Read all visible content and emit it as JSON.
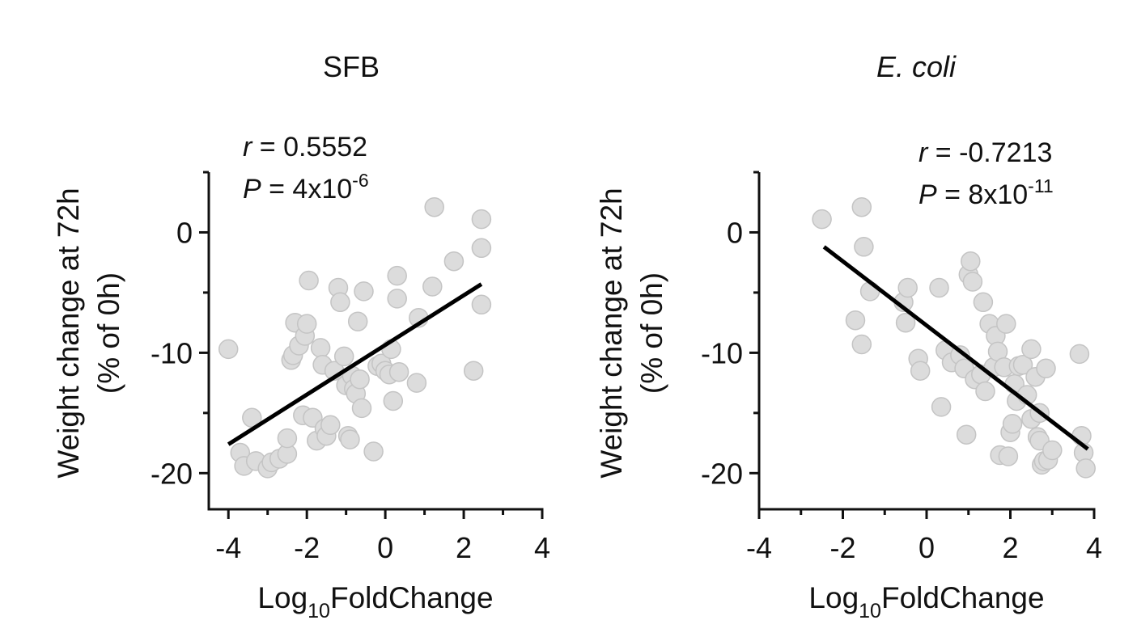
{
  "chart_data": [
    {
      "type": "scatter",
      "title": "SFB",
      "ylabel_line1": "Weight change at 72h",
      "ylabel_line2": "(% of 0h)",
      "xlabel_base": "Log",
      "xlabel_sub": "10",
      "xlabel_rest": "FoldChange",
      "xlim": [
        -4.5,
        4
      ],
      "ylim": [
        -23,
        5
      ],
      "xticks": [
        -4,
        -2,
        0,
        2,
        4
      ],
      "yticks": [
        0,
        -10,
        -20
      ],
      "stats": {
        "r_label": "r",
        "r_value": " = 0.5552",
        "p_label": "P",
        "p_value": " = 4x10",
        "p_exp": "-6"
      },
      "fit": {
        "x": [
          -4.0,
          2.45
        ],
        "y": [
          -17.6,
          -4.3
        ]
      },
      "points": [
        [
          -4.0,
          -9.7
        ],
        [
          -3.7,
          -18.3
        ],
        [
          -3.6,
          -19.4
        ],
        [
          -3.4,
          -15.4
        ],
        [
          -3.3,
          -19.0
        ],
        [
          -3.0,
          -19.6
        ],
        [
          -2.9,
          -19.1
        ],
        [
          -2.7,
          -18.8
        ],
        [
          -2.5,
          -18.4
        ],
        [
          -2.5,
          -17.1
        ],
        [
          -2.4,
          -10.6
        ],
        [
          -2.35,
          -10.2
        ],
        [
          -2.3,
          -7.5
        ],
        [
          -2.2,
          -9.4
        ],
        [
          -2.1,
          -15.2
        ],
        [
          -2.05,
          -8.6
        ],
        [
          -2.0,
          -7.6
        ],
        [
          -1.95,
          -4.0
        ],
        [
          -1.85,
          -15.4
        ],
        [
          -1.75,
          -17.3
        ],
        [
          -1.65,
          -9.6
        ],
        [
          -1.6,
          -11.0
        ],
        [
          -1.55,
          -16.3
        ],
        [
          -1.5,
          -16.9
        ],
        [
          -1.4,
          -16.0
        ],
        [
          -1.3,
          -11.5
        ],
        [
          -1.2,
          -4.6
        ],
        [
          -1.15,
          -5.8
        ],
        [
          -1.05,
          -10.3
        ],
        [
          -1.0,
          -12.7
        ],
        [
          -0.95,
          -16.9
        ],
        [
          -0.9,
          -17.2
        ],
        [
          -0.85,
          -11.9
        ],
        [
          -0.8,
          -13.0
        ],
        [
          -0.75,
          -13.4
        ],
        [
          -0.7,
          -7.4
        ],
        [
          -0.65,
          -12.2
        ],
        [
          -0.6,
          -14.6
        ],
        [
          -0.55,
          -4.9
        ],
        [
          -0.3,
          -18.2
        ],
        [
          -0.2,
          -11.1
        ],
        [
          -0.1,
          -10.9
        ],
        [
          0.0,
          -11.5
        ],
        [
          0.1,
          -11.8
        ],
        [
          0.15,
          -9.7
        ],
        [
          0.2,
          -14.0
        ],
        [
          0.3,
          -3.6
        ],
        [
          0.3,
          -5.5
        ],
        [
          0.35,
          -11.6
        ],
        [
          0.8,
          -12.5
        ],
        [
          0.85,
          -7.1
        ],
        [
          1.2,
          -4.5
        ],
        [
          1.25,
          2.1
        ],
        [
          1.75,
          -2.4
        ],
        [
          2.25,
          -11.5
        ],
        [
          2.45,
          1.1
        ],
        [
          2.45,
          -1.3
        ],
        [
          2.45,
          -6.0
        ]
      ]
    },
    {
      "type": "scatter",
      "title": "E. coli",
      "ylabel_line1": "Weight change at 72h",
      "ylabel_line2": "(% of 0h)",
      "xlabel_base": "Log",
      "xlabel_sub": "10",
      "xlabel_rest": "FoldChange",
      "xlim": [
        -4,
        4
      ],
      "ylim": [
        -23,
        5
      ],
      "xticks": [
        -4,
        -2,
        0,
        2,
        4
      ],
      "yticks": [
        0,
        -10,
        -20
      ],
      "stats": {
        "r_label": "r",
        "r_value": " = -0.7213",
        "p_label": "P",
        "p_value": " = 8x10",
        "p_exp": "-11"
      },
      "fit": {
        "x": [
          -2.45,
          3.85
        ],
        "y": [
          -1.2,
          -18.0
        ]
      },
      "points": [
        [
          -2.5,
          1.1
        ],
        [
          -1.55,
          2.1
        ],
        [
          -1.5,
          -1.2
        ],
        [
          -1.35,
          -4.9
        ],
        [
          -1.7,
          -7.3
        ],
        [
          -1.55,
          -9.3
        ],
        [
          -0.55,
          -5.8
        ],
        [
          -0.45,
          -4.6
        ],
        [
          -0.5,
          -7.5
        ],
        [
          -0.2,
          -10.5
        ],
        [
          -0.15,
          -11.5
        ],
        [
          0.3,
          -4.6
        ],
        [
          0.35,
          -14.5
        ],
        [
          0.45,
          -9.8
        ],
        [
          0.6,
          -10.8
        ],
        [
          0.8,
          -10.2
        ],
        [
          0.9,
          -11.3
        ],
        [
          0.95,
          -16.8
        ],
        [
          1.0,
          -3.5
        ],
        [
          1.05,
          -2.4
        ],
        [
          1.1,
          -4.1
        ],
        [
          1.15,
          -12.2
        ],
        [
          1.3,
          -11.8
        ],
        [
          1.35,
          -5.8
        ],
        [
          1.4,
          -13.2
        ],
        [
          1.5,
          -7.6
        ],
        [
          1.6,
          -11.2
        ],
        [
          1.65,
          -8.6
        ],
        [
          1.7,
          -9.9
        ],
        [
          1.75,
          -18.5
        ],
        [
          1.85,
          -11.2
        ],
        [
          1.9,
          -7.6
        ],
        [
          1.95,
          -18.6
        ],
        [
          2.0,
          -16.6
        ],
        [
          2.05,
          -15.9
        ],
        [
          2.1,
          -12.6
        ],
        [
          2.15,
          -14.0
        ],
        [
          2.2,
          -11.1
        ],
        [
          2.3,
          -11.0
        ],
        [
          2.4,
          -13.5
        ],
        [
          2.5,
          -15.5
        ],
        [
          2.5,
          -9.7
        ],
        [
          2.6,
          -12.0
        ],
        [
          2.65,
          -17.0
        ],
        [
          2.7,
          -17.3
        ],
        [
          2.7,
          -15.0
        ],
        [
          2.75,
          -19.3
        ],
        [
          2.8,
          -19.0
        ],
        [
          2.85,
          -11.3
        ],
        [
          2.9,
          -18.9
        ],
        [
          3.0,
          -18.1
        ],
        [
          3.65,
          -10.1
        ],
        [
          3.7,
          -16.9
        ],
        [
          3.75,
          -18.3
        ],
        [
          3.8,
          -19.6
        ]
      ]
    }
  ]
}
